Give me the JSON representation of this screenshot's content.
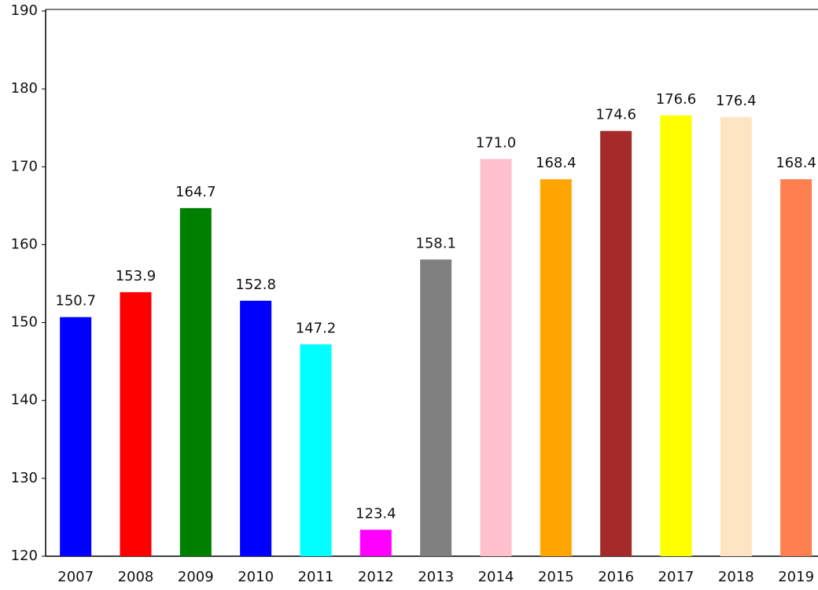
{
  "chart_data": {
    "type": "bar",
    "categories": [
      "2007",
      "2008",
      "2009",
      "2010",
      "2011",
      "2012",
      "2013",
      "2014",
      "2015",
      "2016",
      "2017",
      "2018",
      "2019"
    ],
    "values": [
      150.7,
      153.9,
      164.7,
      152.8,
      147.2,
      123.4,
      158.1,
      171.0,
      168.4,
      174.6,
      176.6,
      176.4,
      168.4
    ],
    "value_labels": [
      "150.7",
      "153.9",
      "164.7",
      "152.8",
      "147.2",
      "123.4",
      "158.1",
      "171.0",
      "168.4",
      "174.6",
      "176.6",
      "176.4",
      "168.4"
    ],
    "colors": [
      "#0000ff",
      "#ff0000",
      "#008000",
      "#0000ff",
      "#00ffff",
      "#ff00ff",
      "#808080",
      "#ffc0cb",
      "#ffa500",
      "#a52a2a",
      "#ffff00",
      "#ffe4c4",
      "#ff7f50"
    ],
    "ylim": [
      120,
      190
    ],
    "yticks": [
      120,
      130,
      140,
      150,
      160,
      170,
      180,
      190
    ],
    "grid": false
  }
}
